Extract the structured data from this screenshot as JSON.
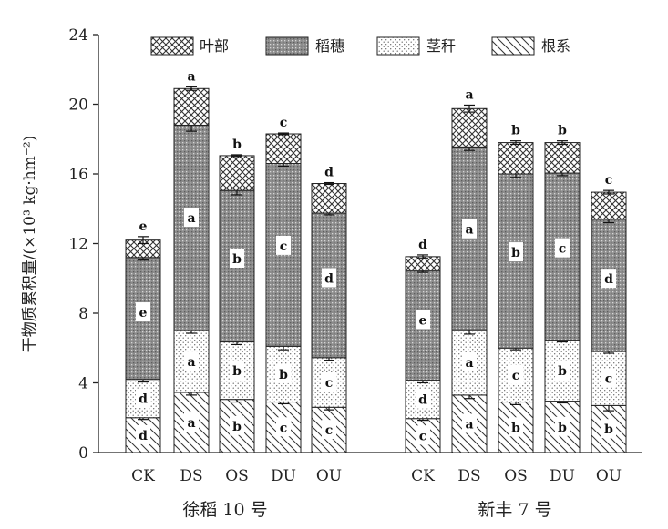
{
  "chart_data": {
    "type": "bar",
    "stacked": true,
    "title": "",
    "ylabel": "干物质累积量/(×10³ kg·hm⁻²)",
    "ylim": [
      0,
      24
    ],
    "yticks": [
      0,
      4,
      8,
      12,
      16,
      20,
      24
    ],
    "grid": false,
    "legend_position": "top",
    "groups": [
      {
        "name": "徐稻 10 号",
        "categories": [
          "CK",
          "DS",
          "OS",
          "DU",
          "OU"
        ],
        "series": [
          {
            "name": "根系",
            "values": [
              2.0,
              3.45,
              3.05,
              2.9,
              2.6
            ],
            "errors": [
              0.1,
              0.15,
              0.15,
              0.1,
              0.15
            ],
            "letters": [
              "d",
              "a",
              "b",
              "c",
              "c"
            ]
          },
          {
            "name": "茎秆",
            "values": [
              2.2,
              3.55,
              3.3,
              3.2,
              2.85
            ],
            "errors": [
              0.15,
              0.15,
              0.15,
              0.2,
              0.15
            ],
            "letters": [
              "d",
              "a",
              "b",
              "b",
              "c"
            ]
          },
          {
            "name": "稻穗",
            "values": [
              7.0,
              11.8,
              8.7,
              10.5,
              8.3
            ],
            "errors": [
              0.15,
              0.35,
              0.25,
              0.15,
              0.1
            ],
            "letters": [
              "e",
              "a",
              "b",
              "c",
              "d"
            ]
          },
          {
            "name": "叶部",
            "values": [
              1.0,
              2.1,
              2.0,
              1.7,
              1.7
            ],
            "errors": [
              0.2,
              0.1,
              0.05,
              0.05,
              0.05
            ],
            "letters": [
              "e",
              "a",
              "b",
              "c",
              "d"
            ]
          }
        ]
      },
      {
        "name": "新丰 7 号",
        "categories": [
          "CK",
          "DS",
          "OS",
          "DU",
          "OU"
        ],
        "series": [
          {
            "name": "根系",
            "values": [
              1.95,
              3.3,
              2.9,
              2.95,
              2.7
            ],
            "errors": [
              0.1,
              0.2,
              0.15,
              0.1,
              0.3
            ],
            "letters": [
              "c",
              "a",
              "b",
              "b",
              "b"
            ]
          },
          {
            "name": "茎秆",
            "values": [
              2.2,
              3.75,
              3.1,
              3.5,
              3.1
            ],
            "errors": [
              0.15,
              0.25,
              0.1,
              0.1,
              0.1
            ],
            "letters": [
              "d",
              "a",
              "c",
              "b",
              "c"
            ]
          },
          {
            "name": "稻穗",
            "values": [
              6.3,
              10.5,
              10.0,
              9.6,
              7.6
            ],
            "errors": [
              0.1,
              0.2,
              0.2,
              0.15,
              0.2
            ],
            "letters": [
              "e",
              "a",
              "b",
              "c",
              "d"
            ]
          },
          {
            "name": "叶部",
            "values": [
              0.8,
              2.2,
              1.8,
              1.75,
              1.55
            ],
            "errors": [
              0.1,
              0.2,
              0.1,
              0.1,
              0.1
            ],
            "letters": [
              "d",
              "a",
              "b",
              "b",
              "c"
            ]
          }
        ]
      }
    ],
    "legend": [
      "叶部",
      "稻穗",
      "茎秆",
      "根系"
    ]
  }
}
